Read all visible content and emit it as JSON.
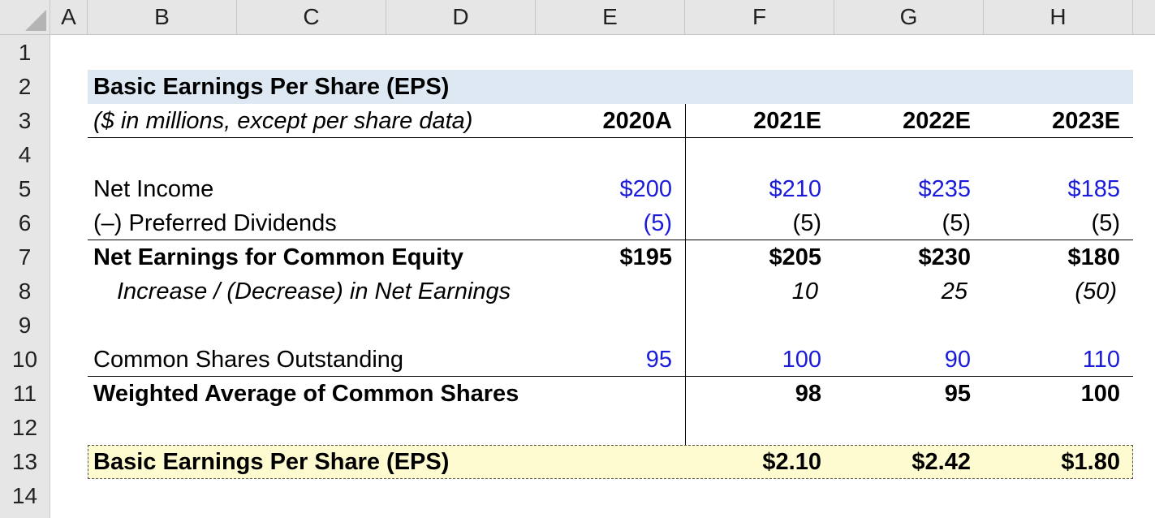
{
  "columns": [
    "A",
    "B",
    "C",
    "D",
    "E",
    "F",
    "G",
    "H"
  ],
  "rows": [
    "1",
    "2",
    "3",
    "4",
    "5",
    "6",
    "7",
    "8",
    "9",
    "10",
    "11",
    "12",
    "13",
    "14"
  ],
  "title": "Basic Earnings Per Share (EPS)",
  "subtitle": "($ in millions, except per share data)",
  "years": [
    "2020A",
    "2021E",
    "2022E",
    "2023E"
  ],
  "lines": {
    "net_income": {
      "label": "Net Income",
      "values": [
        "$200",
        "$210",
        "$235",
        "$185"
      ]
    },
    "pref_div": {
      "label": "(–) Preferred Dividends",
      "values": [
        "(5)",
        "(5)",
        "(5)",
        "(5)"
      ]
    },
    "net_earn": {
      "label": "Net Earnings for Common Equity",
      "values": [
        "$195",
        "$205",
        "$230",
        "$180"
      ]
    },
    "inc_dec": {
      "label": "Increase / (Decrease) in Net Earnings",
      "values": [
        "10",
        "25",
        "(50)"
      ]
    },
    "shares_out": {
      "label": "Common Shares Outstanding",
      "values": [
        "95",
        "100",
        "90",
        "110"
      ]
    },
    "wavg": {
      "label": "Weighted Average of Common Shares",
      "values": [
        "98",
        "95",
        "100"
      ]
    },
    "eps": {
      "label": "Basic Earnings Per Share (EPS)",
      "values": [
        "$2.10",
        "$2.42",
        "$1.80"
      ]
    }
  },
  "colors": {
    "input_blue": "#1a1adb",
    "title_fill": "#dde8f3",
    "eps_fill": "#fdfbcf",
    "header_gray": "#e6e6e6"
  }
}
